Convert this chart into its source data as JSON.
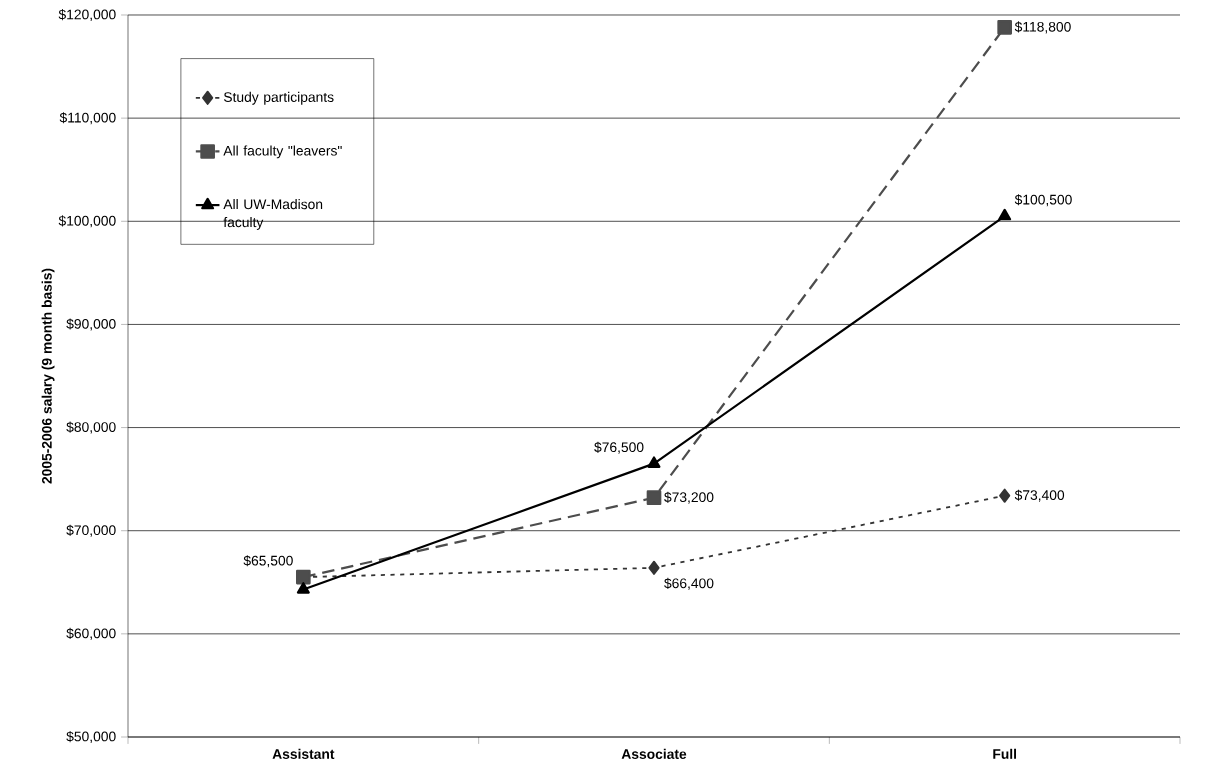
{
  "chart_data": {
    "type": "line",
    "ylabel": "2005-2006 salary (9 month basis)",
    "categories": [
      "Assistant",
      "Associate",
      "Full"
    ],
    "series": [
      {
        "name": "Study participants",
        "color": "#333333",
        "marker": "diamond",
        "line_style": "dotted",
        "values": [
          65500,
          66400,
          73400
        ],
        "value_labels": [
          "$65,500",
          "$66,400",
          "$73,400"
        ]
      },
      {
        "name": "All faculty \"leavers\"",
        "color": "#4d4d4d",
        "marker": "square",
        "line_style": "dashed",
        "values": [
          65500,
          73200,
          118800
        ],
        "value_labels": [
          null,
          "$73,200",
          "$118,800"
        ]
      },
      {
        "name": "All UW-Madison faculty",
        "color": "#000000",
        "marker": "triangle",
        "line_style": "solid",
        "values": [
          64300,
          76500,
          100500
        ],
        "value_labels": [
          null,
          "$76,500",
          "$100,500"
        ]
      }
    ],
    "ylim": [
      50000,
      120000
    ],
    "yticks": [
      {
        "value": 50000,
        "label": "$50,000"
      },
      {
        "value": 60000,
        "label": "$60,000"
      },
      {
        "value": 70000,
        "label": "$70,000"
      },
      {
        "value": 80000,
        "label": "$80,000"
      },
      {
        "value": 90000,
        "label": "$90,000"
      },
      {
        "value": 100000,
        "label": "$100,000"
      },
      {
        "value": 110000,
        "label": "$110,000"
      },
      {
        "value": 120000,
        "label": "$120,000"
      }
    ],
    "grid": "y",
    "legend": "top left"
  }
}
